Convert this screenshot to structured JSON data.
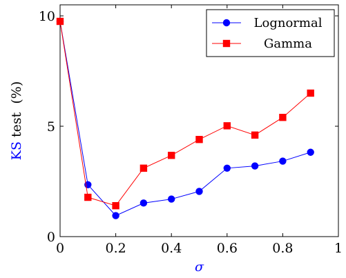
{
  "chart_data": {
    "type": "line",
    "title": "",
    "xlabel": "σ",
    "ylabel_colored": "KS",
    "ylabel_rest": " test  (%)",
    "xlim": [
      0,
      1
    ],
    "ylim": [
      0,
      10.5
    ],
    "xticks": [
      0,
      0.2,
      0.4,
      0.6,
      0.8,
      1
    ],
    "xtick_labels": [
      "0",
      "0.2",
      "0.4",
      "0.6",
      "0.8",
      "1"
    ],
    "yticks": [
      0,
      5,
      10
    ],
    "ytick_labels": [
      "0",
      "5",
      "10"
    ],
    "grid": false,
    "legend_position": "top-right",
    "colors": {
      "accent_label": "#0000ff"
    },
    "series": [
      {
        "name": "Lognormal",
        "color": "#0000ff",
        "marker": "circle",
        "x": [
          0,
          0.1,
          0.2,
          0.3,
          0.4,
          0.5,
          0.6,
          0.7,
          0.8,
          0.9
        ],
        "y": [
          9.75,
          2.35,
          0.95,
          1.52,
          1.7,
          2.05,
          3.1,
          3.2,
          3.42,
          3.82
        ]
      },
      {
        "name": "Gamma",
        "color": "#ff0000",
        "marker": "square",
        "x": [
          0,
          0.1,
          0.2,
          0.3,
          0.4,
          0.5,
          0.6,
          0.7,
          0.8,
          0.9
        ],
        "y": [
          9.75,
          1.78,
          1.4,
          3.1,
          3.68,
          4.4,
          5.02,
          4.6,
          5.4,
          6.5
        ]
      }
    ]
  }
}
